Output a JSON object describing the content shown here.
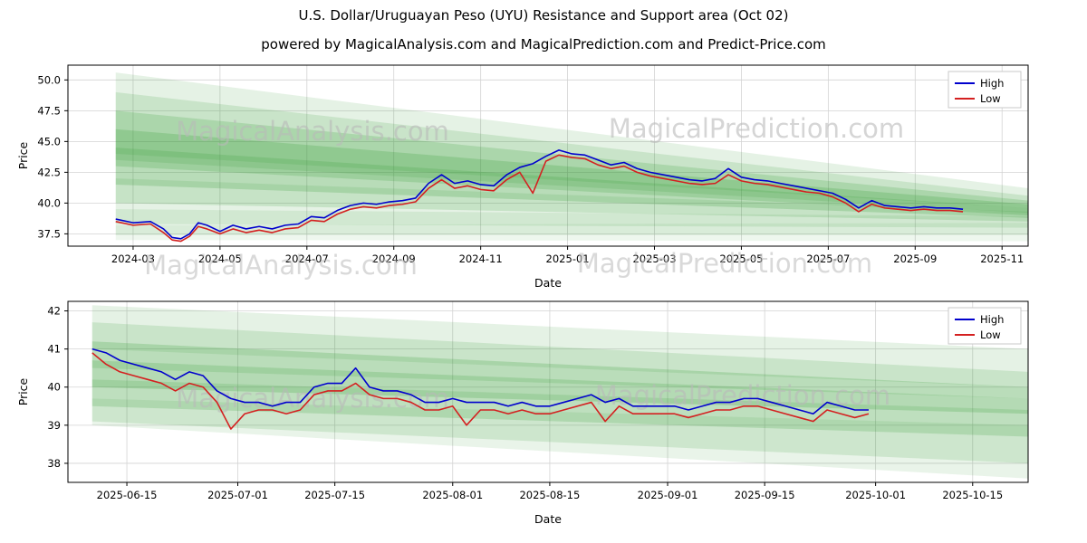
{
  "title": "U.S. Dollar/Uruguayan Peso (UYU) Resistance and Support area (Oct 02)",
  "subtitle": "powered by MagicalAnalysis.com and MagicalPrediction.com and Predict-Price.com",
  "watermarks": [
    "MagicalAnalysis.com",
    "MagicalPrediction.com"
  ],
  "colors": {
    "high": "#0000cd",
    "low": "#d42020",
    "band": "#269626",
    "grid": "#d3d3d3",
    "watermark": "#b9b9b9",
    "axis": "#000000"
  },
  "chart_data": [
    {
      "type": "line",
      "title": "",
      "xlabel": "Date",
      "ylabel": "Price",
      "xlim": [
        -0.5,
        21.6
      ],
      "ylim": [
        36.5,
        51.2
      ],
      "grid": true,
      "legend_position": "top-right",
      "yticks": [
        {
          "v": 37.5,
          "label": "37.5"
        },
        {
          "v": 40.0,
          "label": "40.0"
        },
        {
          "v": 42.5,
          "label": "42.5"
        },
        {
          "v": 45.0,
          "label": "45.0"
        },
        {
          "v": 47.5,
          "label": "47.5"
        },
        {
          "v": 50.0,
          "label": "50.0"
        }
      ],
      "xticks": [
        {
          "v": 1,
          "label": "2024-03"
        },
        {
          "v": 3,
          "label": "2024-05"
        },
        {
          "v": 5,
          "label": "2024-07"
        },
        {
          "v": 7,
          "label": "2024-09"
        },
        {
          "v": 9,
          "label": "2024-11"
        },
        {
          "v": 11,
          "label": "2025-01"
        },
        {
          "v": 13,
          "label": "2025-03"
        },
        {
          "v": 15,
          "label": "2025-05"
        },
        {
          "v": 17,
          "label": "2025-07"
        },
        {
          "v": 19,
          "label": "2025-09"
        },
        {
          "v": 21,
          "label": "2025-11"
        }
      ],
      "x": [
        0.6,
        1.0,
        1.4,
        1.7,
        1.9,
        2.1,
        2.3,
        2.5,
        2.7,
        3.0,
        3.3,
        3.6,
        3.9,
        4.2,
        4.5,
        4.8,
        5.1,
        5.4,
        5.7,
        6.0,
        6.3,
        6.6,
        6.9,
        7.2,
        7.5,
        7.8,
        8.1,
        8.4,
        8.7,
        9.0,
        9.3,
        9.6,
        9.9,
        10.2,
        10.5,
        10.8,
        11.1,
        11.4,
        11.7,
        12.0,
        12.3,
        12.6,
        12.9,
        13.2,
        13.5,
        13.8,
        14.1,
        14.4,
        14.7,
        15.0,
        15.3,
        15.6,
        15.9,
        16.2,
        16.5,
        16.8,
        17.1,
        17.4,
        17.7,
        18.0,
        18.3,
        18.6,
        18.9,
        19.2,
        19.5,
        19.8,
        20.1
      ],
      "series": [
        {
          "name": "High",
          "color": "#0000cd",
          "y": [
            38.7,
            38.4,
            38.5,
            37.9,
            37.2,
            37.1,
            37.5,
            38.4,
            38.2,
            37.7,
            38.2,
            37.9,
            38.1,
            37.9,
            38.2,
            38.3,
            38.9,
            38.8,
            39.4,
            39.8,
            40.0,
            39.9,
            40.1,
            40.2,
            40.4,
            41.6,
            42.3,
            41.6,
            41.8,
            41.5,
            41.4,
            42.3,
            42.9,
            43.2,
            43.8,
            44.3,
            44.0,
            43.9,
            43.5,
            43.1,
            43.3,
            42.8,
            42.5,
            42.3,
            42.1,
            41.9,
            41.8,
            42.0,
            42.8,
            42.1,
            41.9,
            41.8,
            41.6,
            41.4,
            41.2,
            41.0,
            40.8,
            40.3,
            39.6,
            40.2,
            39.8,
            39.7,
            39.6,
            39.7,
            39.6,
            39.6,
            39.5
          ]
        },
        {
          "name": "Low",
          "color": "#d42020",
          "y": [
            38.5,
            38.2,
            38.3,
            37.6,
            37.0,
            36.9,
            37.3,
            38.1,
            37.9,
            37.5,
            37.9,
            37.6,
            37.8,
            37.6,
            37.9,
            38.0,
            38.6,
            38.5,
            39.1,
            39.5,
            39.7,
            39.6,
            39.8,
            39.9,
            40.1,
            41.2,
            41.9,
            41.2,
            41.4,
            41.1,
            41.0,
            41.9,
            42.5,
            40.8,
            43.4,
            43.9,
            43.7,
            43.6,
            43.1,
            42.8,
            43.0,
            42.5,
            42.2,
            42.0,
            41.8,
            41.6,
            41.5,
            41.6,
            42.3,
            41.8,
            41.6,
            41.5,
            41.3,
            41.1,
            40.9,
            40.8,
            40.5,
            40.0,
            39.3,
            39.9,
            39.6,
            39.5,
            39.4,
            39.5,
            39.4,
            39.4,
            39.3
          ]
        }
      ],
      "bands": [
        {
          "x": [
            0.6,
            21.6
          ],
          "top": [
            50.6,
            41.2
          ],
          "bottom": [
            44.0,
            39.6
          ],
          "alpha": 0.12
        },
        {
          "x": [
            0.6,
            21.6
          ],
          "top": [
            49.0,
            40.6
          ],
          "bottom": [
            43.5,
            39.2
          ],
          "alpha": 0.14
        },
        {
          "x": [
            0.6,
            21.6
          ],
          "top": [
            47.5,
            40.2
          ],
          "bottom": [
            43.0,
            39.0
          ],
          "alpha": 0.18
        },
        {
          "x": [
            0.6,
            21.6
          ],
          "top": [
            46.0,
            39.9
          ],
          "bottom": [
            41.5,
            38.8
          ],
          "alpha": 0.2
        },
        {
          "x": [
            0.6,
            21.6
          ],
          "top": [
            44.5,
            39.6
          ],
          "bottom": [
            40.0,
            38.5
          ],
          "alpha": 0.16
        },
        {
          "x": [
            0.6,
            21.6
          ],
          "top": [
            42.0,
            39.3
          ],
          "bottom": [
            38.3,
            38.0
          ],
          "alpha": 0.12
        },
        {
          "x": [
            0.6,
            21.6
          ],
          "top": [
            39.5,
            38.9
          ],
          "bottom": [
            37.4,
            37.4
          ],
          "alpha": 0.1
        },
        {
          "x": [
            0.6,
            21.6
          ],
          "top": [
            38.2,
            38.4
          ],
          "bottom": [
            37.0,
            36.9
          ],
          "alpha": 0.08
        }
      ]
    },
    {
      "type": "line",
      "title": "",
      "xlabel": "Date",
      "ylabel": "Price",
      "xlim": [
        -1.5,
        137
      ],
      "ylim": [
        37.5,
        42.25
      ],
      "grid": true,
      "legend_position": "top-right",
      "yticks": [
        {
          "v": 38,
          "label": "38"
        },
        {
          "v": 39,
          "label": "39"
        },
        {
          "v": 40,
          "label": "40"
        },
        {
          "v": 41,
          "label": "41"
        },
        {
          "v": 42,
          "label": "42"
        }
      ],
      "xticks": [
        {
          "v": 7,
          "label": "2025-06-15"
        },
        {
          "v": 23,
          "label": "2025-07-01"
        },
        {
          "v": 37,
          "label": "2025-07-15"
        },
        {
          "v": 54,
          "label": "2025-08-01"
        },
        {
          "v": 68,
          "label": "2025-08-15"
        },
        {
          "v": 85,
          "label": "2025-09-01"
        },
        {
          "v": 99,
          "label": "2025-09-15"
        },
        {
          "v": 115,
          "label": "2025-10-01"
        },
        {
          "v": 129,
          "label": "2025-10-15"
        }
      ],
      "x": [
        2,
        4,
        6,
        8,
        10,
        12,
        14,
        16,
        18,
        20,
        22,
        24,
        26,
        28,
        30,
        32,
        34,
        36,
        38,
        40,
        42,
        44,
        46,
        48,
        50,
        52,
        54,
        56,
        58,
        60,
        62,
        64,
        66,
        68,
        70,
        72,
        74,
        76,
        78,
        80,
        82,
        84,
        86,
        88,
        90,
        92,
        94,
        96,
        98,
        100,
        102,
        104,
        106,
        108,
        110,
        112,
        114
      ],
      "series": [
        {
          "name": "High",
          "color": "#0000cd",
          "y": [
            41.0,
            40.9,
            40.7,
            40.6,
            40.5,
            40.4,
            40.2,
            40.4,
            40.3,
            39.9,
            39.7,
            39.6,
            39.6,
            39.5,
            39.6,
            39.6,
            40.0,
            40.1,
            40.1,
            40.5,
            40.0,
            39.9,
            39.9,
            39.8,
            39.6,
            39.6,
            39.7,
            39.6,
            39.6,
            39.6,
            39.5,
            39.6,
            39.5,
            39.5,
            39.6,
            39.7,
            39.8,
            39.6,
            39.7,
            39.5,
            39.5,
            39.5,
            39.5,
            39.4,
            39.5,
            39.6,
            39.6,
            39.7,
            39.7,
            39.6,
            39.5,
            39.4,
            39.3,
            39.6,
            39.5,
            39.4,
            39.4
          ]
        },
        {
          "name": "Low",
          "color": "#d42020",
          "y": [
            40.9,
            40.6,
            40.4,
            40.3,
            40.2,
            40.1,
            39.9,
            40.1,
            40.0,
            39.6,
            38.9,
            39.3,
            39.4,
            39.4,
            39.3,
            39.4,
            39.8,
            39.9,
            39.9,
            40.1,
            39.8,
            39.7,
            39.7,
            39.6,
            39.4,
            39.4,
            39.5,
            39.0,
            39.4,
            39.4,
            39.3,
            39.4,
            39.3,
            39.3,
            39.4,
            39.5,
            39.6,
            39.1,
            39.5,
            39.3,
            39.3,
            39.3,
            39.3,
            39.2,
            39.3,
            39.4,
            39.4,
            39.5,
            39.5,
            39.4,
            39.3,
            39.2,
            39.1,
            39.4,
            39.3,
            39.2,
            39.3
          ]
        }
      ],
      "bands": [
        {
          "x": [
            2,
            137
          ],
          "top": [
            42.15,
            41.0
          ],
          "bottom": [
            41.0,
            40.0
          ],
          "alpha": 0.12
        },
        {
          "x": [
            2,
            137
          ],
          "top": [
            41.7,
            40.4
          ],
          "bottom": [
            40.5,
            39.7
          ],
          "alpha": 0.15
        },
        {
          "x": [
            2,
            137
          ],
          "top": [
            41.2,
            40.0
          ],
          "bottom": [
            40.0,
            39.3
          ],
          "alpha": 0.2
        },
        {
          "x": [
            2,
            137
          ],
          "top": [
            40.7,
            39.7
          ],
          "bottom": [
            39.5,
            38.7
          ],
          "alpha": 0.18
        },
        {
          "x": [
            2,
            137
          ],
          "top": [
            40.2,
            39.4
          ],
          "bottom": [
            39.1,
            38.0
          ],
          "alpha": 0.14
        },
        {
          "x": [
            2,
            137
          ],
          "top": [
            39.7,
            39.0
          ],
          "bottom": [
            39.0,
            37.6
          ],
          "alpha": 0.1
        }
      ]
    }
  ]
}
